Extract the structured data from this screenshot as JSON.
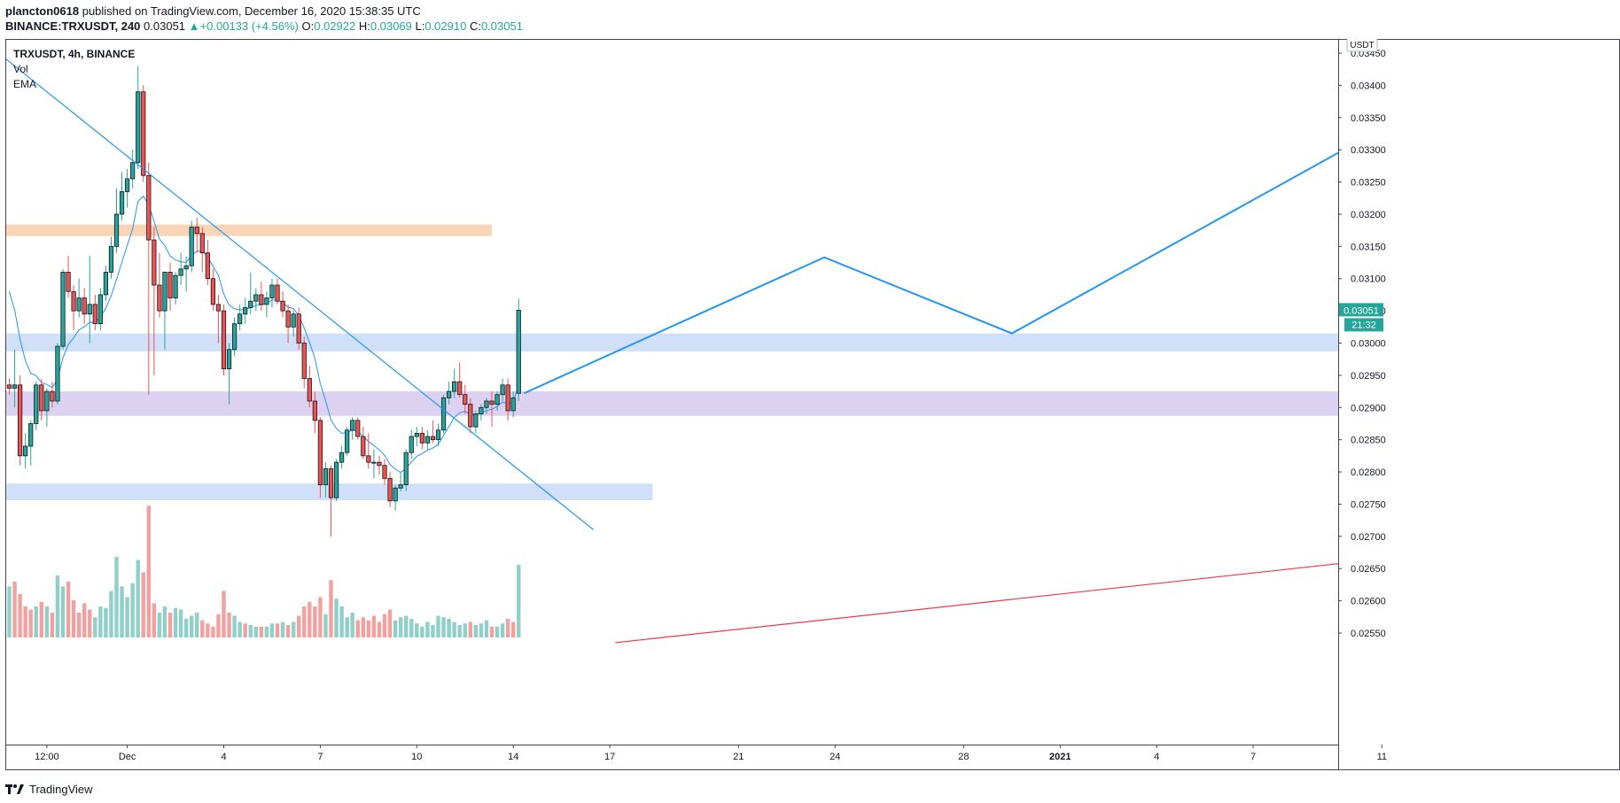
{
  "header": {
    "author": "plancton0618",
    "published_text": "published on TradingView.com, December 16, 2020 15:38:35 UTC",
    "symbol_line": "BINANCE:TRXUSDT, 240",
    "price": "0.03051",
    "change": "+0.00133 (+4.56%)",
    "o_label": "O:",
    "o_value": "0.02922",
    "h_label": "H:",
    "h_value": "0.03069",
    "l_label": "L:",
    "l_value": "0.02910",
    "c_label": "C:",
    "c_value": "0.03051"
  },
  "legend": {
    "title": "TRXUSDT, 4h, BINANCE",
    "indicators": [
      "Vol",
      "EMA"
    ]
  },
  "footer": {
    "brand": "TradingView"
  },
  "colors": {
    "up": "#26a69a",
    "down": "#ef5350",
    "vol_up": "#8fd0c8",
    "vol_down": "#f3a1a0",
    "ema": "#2196f3",
    "drawing_blue": "#2196f3",
    "trend_red": "#f23645",
    "zone_orange": "#f9ccaa",
    "zone_blue": "#c8dbf7",
    "zone_purple": "#d7c9ee",
    "price_label_bg": "#26a69a"
  },
  "chart_data": {
    "type": "candlestick",
    "title": "TRXUSDT, 4h, BINANCE",
    "currency_label": "USDT",
    "ylim": [
      0.02535,
      0.03458
    ],
    "y_ticks": [
      "0.03450",
      "0.03400",
      "0.03350",
      "0.03300",
      "0.03250",
      "0.03200",
      "0.03150",
      "0.03100",
      "0.03050",
      "0.03000",
      "0.02950",
      "0.02900",
      "0.02850",
      "0.02800",
      "0.02750",
      "0.02700",
      "0.02650",
      "0.02600",
      "0.02550"
    ],
    "x_range_bars": [
      -2,
      278
    ],
    "x_ticks": [
      {
        "bar": 7,
        "label": "12:00"
      },
      {
        "bar": 22,
        "label": "Dec"
      },
      {
        "bar": 40,
        "label": "4"
      },
      {
        "bar": 58,
        "label": "7"
      },
      {
        "bar": 76,
        "label": "10"
      },
      {
        "bar": 94,
        "label": "14"
      },
      {
        "bar": 112,
        "label": "17"
      },
      {
        "bar": 136,
        "label": "21"
      },
      {
        "bar": 154,
        "label": "24"
      },
      {
        "bar": 178,
        "label": "28"
      },
      {
        "bar": 196,
        "label": "2021"
      },
      {
        "bar": 214,
        "label": "4"
      },
      {
        "bar": 232,
        "label": "7"
      },
      {
        "bar": 256,
        "label": "11"
      }
    ],
    "candles": [
      [
        0.02935,
        0.02945,
        0.0292,
        0.0293
      ],
      [
        0.0293,
        0.0299,
        0.029,
        0.02935
      ],
      [
        0.02935,
        0.0295,
        0.0281,
        0.02825
      ],
      [
        0.02825,
        0.0286,
        0.02805,
        0.0284
      ],
      [
        0.0284,
        0.0288,
        0.0281,
        0.02875
      ],
      [
        0.02875,
        0.0294,
        0.02865,
        0.02935
      ],
      [
        0.02935,
        0.02945,
        0.0288,
        0.02895
      ],
      [
        0.02895,
        0.0293,
        0.0287,
        0.02925
      ],
      [
        0.02925,
        0.0294,
        0.029,
        0.0291
      ],
      [
        0.0291,
        0.03,
        0.02905,
        0.02995
      ],
      [
        0.02995,
        0.03115,
        0.0299,
        0.0311
      ],
      [
        0.0311,
        0.03135,
        0.0307,
        0.0308
      ],
      [
        0.0308,
        0.0309,
        0.0302,
        0.0305
      ],
      [
        0.0305,
        0.031,
        0.0304,
        0.0307
      ],
      [
        0.0307,
        0.03085,
        0.0303,
        0.03045
      ],
      [
        0.03045,
        0.03135,
        0.03,
        0.0306
      ],
      [
        0.0306,
        0.03075,
        0.0302,
        0.0303
      ],
      [
        0.0303,
        0.03085,
        0.0302,
        0.03075
      ],
      [
        0.03075,
        0.0312,
        0.03065,
        0.0311
      ],
      [
        0.0311,
        0.03165,
        0.031,
        0.0315
      ],
      [
        0.0315,
        0.0324,
        0.0314,
        0.032
      ],
      [
        0.032,
        0.03265,
        0.0319,
        0.03235
      ],
      [
        0.03235,
        0.0327,
        0.0321,
        0.03255
      ],
      [
        0.03255,
        0.033,
        0.0324,
        0.0328
      ],
      [
        0.0328,
        0.0343,
        0.0327,
        0.0339
      ],
      [
        0.0339,
        0.034,
        0.0325,
        0.0326
      ],
      [
        0.0326,
        0.0328,
        0.0292,
        0.0316
      ],
      [
        0.0316,
        0.0318,
        0.0295,
        0.0309
      ],
      [
        0.0309,
        0.0314,
        0.0304,
        0.0305
      ],
      [
        0.0305,
        0.0311,
        0.0299,
        0.0311
      ],
      [
        0.0311,
        0.03125,
        0.0305,
        0.0307
      ],
      [
        0.0307,
        0.0311,
        0.0306,
        0.03105
      ],
      [
        0.03105,
        0.0314,
        0.0309,
        0.03115
      ],
      [
        0.03115,
        0.03135,
        0.0308,
        0.0312
      ],
      [
        0.0312,
        0.0319,
        0.0311,
        0.0318
      ],
      [
        0.0318,
        0.03195,
        0.0314,
        0.0317
      ],
      [
        0.0317,
        0.0318,
        0.0311,
        0.0314
      ],
      [
        0.0314,
        0.0316,
        0.0309,
        0.031
      ],
      [
        0.031,
        0.03115,
        0.0305,
        0.0306
      ],
      [
        0.0306,
        0.03075,
        0.03,
        0.0305
      ],
      [
        0.0305,
        0.0306,
        0.0295,
        0.0296
      ],
      [
        0.0296,
        0.03,
        0.02905,
        0.0299
      ],
      [
        0.0299,
        0.0304,
        0.0298,
        0.0303
      ],
      [
        0.0303,
        0.0306,
        0.0302,
        0.03045
      ],
      [
        0.03045,
        0.0307,
        0.0303,
        0.03055
      ],
      [
        0.03055,
        0.0311,
        0.03045,
        0.03065
      ],
      [
        0.03065,
        0.03085,
        0.0305,
        0.03075
      ],
      [
        0.03075,
        0.03095,
        0.0305,
        0.0306
      ],
      [
        0.0306,
        0.0308,
        0.0304,
        0.0307
      ],
      [
        0.0307,
        0.031,
        0.03055,
        0.0309
      ],
      [
        0.0309,
        0.031,
        0.0306,
        0.03065
      ],
      [
        0.03065,
        0.0308,
        0.0304,
        0.0305
      ],
      [
        0.0305,
        0.0306,
        0.03,
        0.03025
      ],
      [
        0.03025,
        0.0305,
        0.0301,
        0.03045
      ],
      [
        0.03045,
        0.03055,
        0.0299,
        0.03
      ],
      [
        0.03,
        0.0301,
        0.0293,
        0.02945
      ],
      [
        0.02945,
        0.02965,
        0.029,
        0.0291
      ],
      [
        0.0291,
        0.02925,
        0.0286,
        0.0288
      ],
      [
        0.0288,
        0.02885,
        0.0276,
        0.0278
      ],
      [
        0.0278,
        0.02815,
        0.0276,
        0.02805
      ],
      [
        0.02805,
        0.0281,
        0.027,
        0.0276
      ],
      [
        0.0276,
        0.0282,
        0.02755,
        0.02815
      ],
      [
        0.02815,
        0.0284,
        0.02805,
        0.0283
      ],
      [
        0.0283,
        0.0287,
        0.02825,
        0.02865
      ],
      [
        0.02865,
        0.02885,
        0.0285,
        0.0288
      ],
      [
        0.0288,
        0.02885,
        0.0285,
        0.02855
      ],
      [
        0.02855,
        0.0287,
        0.0282,
        0.02825
      ],
      [
        0.02825,
        0.0286,
        0.02805,
        0.02815
      ],
      [
        0.02815,
        0.02835,
        0.0279,
        0.02815
      ],
      [
        0.02815,
        0.02825,
        0.02795,
        0.0281
      ],
      [
        0.0281,
        0.0282,
        0.0278,
        0.0279
      ],
      [
        0.0279,
        0.028,
        0.02745,
        0.02755
      ],
      [
        0.02755,
        0.0278,
        0.0274,
        0.02775
      ],
      [
        0.02775,
        0.028,
        0.0277,
        0.0278
      ],
      [
        0.0278,
        0.02835,
        0.0277,
        0.0283
      ],
      [
        0.0283,
        0.02865,
        0.0282,
        0.02855
      ],
      [
        0.02855,
        0.0287,
        0.0284,
        0.0286
      ],
      [
        0.0286,
        0.0287,
        0.02835,
        0.02845
      ],
      [
        0.02845,
        0.02865,
        0.02835,
        0.02855
      ],
      [
        0.02855,
        0.0288,
        0.02845,
        0.0285
      ],
      [
        0.0285,
        0.02875,
        0.0284,
        0.02865
      ],
      [
        0.02865,
        0.0292,
        0.0286,
        0.02915
      ],
      [
        0.02915,
        0.0294,
        0.02905,
        0.02925
      ],
      [
        0.02925,
        0.0296,
        0.02915,
        0.0294
      ],
      [
        0.0294,
        0.0297,
        0.02915,
        0.0292
      ],
      [
        0.0292,
        0.02935,
        0.0289,
        0.02905
      ],
      [
        0.02905,
        0.02915,
        0.0286,
        0.0287
      ],
      [
        0.0287,
        0.02895,
        0.0286,
        0.0289
      ],
      [
        0.0289,
        0.02905,
        0.0288,
        0.029
      ],
      [
        0.029,
        0.02915,
        0.0289,
        0.0291
      ],
      [
        0.0291,
        0.02925,
        0.0287,
        0.02905
      ],
      [
        0.02905,
        0.02925,
        0.02895,
        0.0292
      ],
      [
        0.0292,
        0.02945,
        0.0291,
        0.02935
      ],
      [
        0.02935,
        0.02945,
        0.0288,
        0.02895
      ],
      [
        0.02895,
        0.02925,
        0.02885,
        0.02915
      ],
      [
        0.02922,
        0.03069,
        0.0291,
        0.03051
      ]
    ],
    "volume": [
      [
        "u",
        0.33
      ],
      [
        "d",
        0.36
      ],
      [
        "d",
        0.28
      ],
      [
        "d",
        0.2
      ],
      [
        "d",
        0.18
      ],
      [
        "u",
        0.2
      ],
      [
        "d",
        0.23
      ],
      [
        "u",
        0.2
      ],
      [
        "d",
        0.16
      ],
      [
        "u",
        0.4
      ],
      [
        "u",
        0.33
      ],
      [
        "d",
        0.36
      ],
      [
        "d",
        0.24
      ],
      [
        "d",
        0.16
      ],
      [
        "d",
        0.22
      ],
      [
        "d",
        0.18
      ],
      [
        "u",
        0.13
      ],
      [
        "u",
        0.2
      ],
      [
        "u",
        0.19
      ],
      [
        "u",
        0.3
      ],
      [
        "u",
        0.52
      ],
      [
        "u",
        0.33
      ],
      [
        "u",
        0.26
      ],
      [
        "u",
        0.35
      ],
      [
        "u",
        0.5
      ],
      [
        "d",
        0.42
      ],
      [
        "d",
        0.85
      ],
      [
        "d",
        0.22
      ],
      [
        "u",
        0.16
      ],
      [
        "u",
        0.2
      ],
      [
        "d",
        0.16
      ],
      [
        "u",
        0.19
      ],
      [
        "u",
        0.18
      ],
      [
        "u",
        0.12
      ],
      [
        "u",
        0.14
      ],
      [
        "u",
        0.16
      ],
      [
        "d",
        0.11
      ],
      [
        "d",
        0.09
      ],
      [
        "d",
        0.07
      ],
      [
        "d",
        0.15
      ],
      [
        "d",
        0.3
      ],
      [
        "d",
        0.16
      ],
      [
        "u",
        0.14
      ],
      [
        "u",
        0.1
      ],
      [
        "d",
        0.09
      ],
      [
        "u",
        0.08
      ],
      [
        "u",
        0.07
      ],
      [
        "d",
        0.07
      ],
      [
        "u",
        0.07
      ],
      [
        "u",
        0.09
      ],
      [
        "d",
        0.09
      ],
      [
        "u",
        0.1
      ],
      [
        "d",
        0.08
      ],
      [
        "u",
        0.1
      ],
      [
        "d",
        0.14
      ],
      [
        "d",
        0.2
      ],
      [
        "d",
        0.23
      ],
      [
        "d",
        0.2
      ],
      [
        "d",
        0.26
      ],
      [
        "u",
        0.15
      ],
      [
        "d",
        0.37
      ],
      [
        "u",
        0.25
      ],
      [
        "u",
        0.2
      ],
      [
        "u",
        0.13
      ],
      [
        "u",
        0.16
      ],
      [
        "d",
        0.11
      ],
      [
        "d",
        0.13
      ],
      [
        "d",
        0.11
      ],
      [
        "d",
        0.14
      ],
      [
        "d",
        0.1
      ],
      [
        "d",
        0.15
      ],
      [
        "d",
        0.18
      ],
      [
        "u",
        0.11
      ],
      [
        "u",
        0.13
      ],
      [
        "u",
        0.14
      ],
      [
        "u",
        0.12
      ],
      [
        "u",
        0.09
      ],
      [
        "u",
        0.07
      ],
      [
        "u",
        0.1
      ],
      [
        "u",
        0.08
      ],
      [
        "u",
        0.14
      ],
      [
        "u",
        0.13
      ],
      [
        "u",
        0.12
      ],
      [
        "u",
        0.1
      ],
      [
        "u",
        0.08
      ],
      [
        "u",
        0.09
      ],
      [
        "d",
        0.1
      ],
      [
        "u",
        0.08
      ],
      [
        "u",
        0.09
      ],
      [
        "u",
        0.11
      ],
      [
        "d",
        0.07
      ],
      [
        "u",
        0.07
      ],
      [
        "u",
        0.09
      ],
      [
        "d",
        0.12
      ],
      [
        "d",
        0.1
      ],
      [
        "u",
        0.47
      ]
    ],
    "ema_color": "#2196f3",
    "zones": [
      {
        "name": "resistance-zone-orange",
        "from": 0.03166,
        "to": 0.03184,
        "bar_end": 90,
        "color": "#f9ccaa"
      },
      {
        "name": "support-zone-blue-upper",
        "from": 0.02987,
        "to": 0.03015,
        "bar_end": 278,
        "color": "#c8dbf7"
      },
      {
        "name": "support-zone-purple",
        "from": 0.02887,
        "to": 0.02925,
        "bar_end": 278,
        "color": "#d7c9ee"
      },
      {
        "name": "support-zone-blue-lower",
        "from": 0.02756,
        "to": 0.02782,
        "bar_end": 120,
        "color": "#c8dbf7"
      }
    ],
    "trendlines": [
      {
        "name": "descending-trendline",
        "p1": [
          -2,
          0.0345
        ],
        "p2": [
          109,
          0.0271
        ],
        "color": "#2196f3"
      },
      {
        "name": "ascending-trendline-red",
        "p1": [
          113,
          0.02535
        ],
        "p2": [
          278,
          0.02685
        ],
        "color": "#f23645"
      }
    ],
    "projection_path": [
      [
        96,
        0.02922
      ],
      [
        152,
        0.03133
      ],
      [
        187,
        0.03015
      ],
      [
        263,
        0.03365
      ]
    ],
    "current_price_label": "0.03051",
    "countdown_label": "21:32"
  }
}
